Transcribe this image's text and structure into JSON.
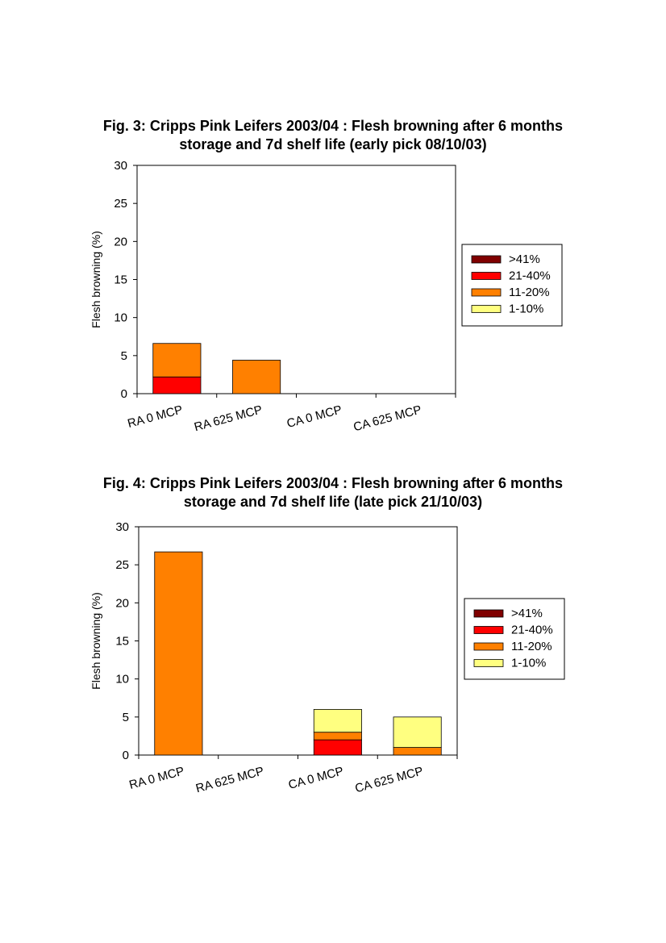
{
  "chart_data": [
    {
      "type": "bar",
      "stacked": true,
      "title_lines": [
        "Fig. 3: Cripps Pink Leifers 2003/04 : Flesh browning after 6 months",
        "storage and 7d shelf life (early pick 08/10/03)"
      ],
      "ylabel": "Flesh browning (%)",
      "ylim": [
        0,
        30
      ],
      "yticks": [
        0,
        5,
        10,
        15,
        20,
        25,
        30
      ],
      "categories": [
        "RA 0 MCP",
        "RA 625 MCP",
        "CA 0 MCP",
        "CA 625 MCP"
      ],
      "series": [
        {
          "name": "21-40%",
          "color": "#ff0000",
          "values": [
            2.2,
            0,
            0,
            0
          ]
        },
        {
          "name": "11-20%",
          "color": "#ff8000",
          "values": [
            4.4,
            4.4,
            0,
            0
          ]
        },
        {
          "name": "1-10%",
          "color": "#ffff80",
          "values": [
            0,
            0,
            0,
            0
          ]
        },
        {
          "name": ">41%",
          "color": "#800000",
          "values": [
            0,
            0,
            0,
            0
          ]
        }
      ],
      "legend_order": [
        ">41%",
        "21-40%",
        "11-20%",
        "1-10%"
      ],
      "legend_placement": "right",
      "grid": false
    },
    {
      "type": "bar",
      "stacked": true,
      "title_lines": [
        "Fig. 4: Cripps Pink Leifers 2003/04 : Flesh browning after 6 months",
        "storage and 7d shelf life (late pick 21/10/03)"
      ],
      "ylabel": "Flesh browning (%)",
      "ylim": [
        0,
        30
      ],
      "yticks": [
        0,
        5,
        10,
        15,
        20,
        25,
        30
      ],
      "categories": [
        "RA 0 MCP",
        "RA 625 MCP",
        "CA 0 MCP",
        "CA 625 MCP"
      ],
      "series": [
        {
          "name": "21-40%",
          "color": "#ff0000",
          "values": [
            0,
            0,
            2,
            0
          ]
        },
        {
          "name": "11-20%",
          "color": "#ff8000",
          "values": [
            26.7,
            0,
            1,
            1
          ]
        },
        {
          "name": "1-10%",
          "color": "#ffff80",
          "values": [
            0,
            0,
            3,
            4
          ]
        },
        {
          "name": ">41%",
          "color": "#800000",
          "values": [
            0,
            0,
            0,
            0
          ]
        }
      ],
      "legend_order": [
        ">41%",
        "21-40%",
        "11-20%",
        "1-10%"
      ],
      "legend_placement": "right",
      "grid": false
    }
  ]
}
